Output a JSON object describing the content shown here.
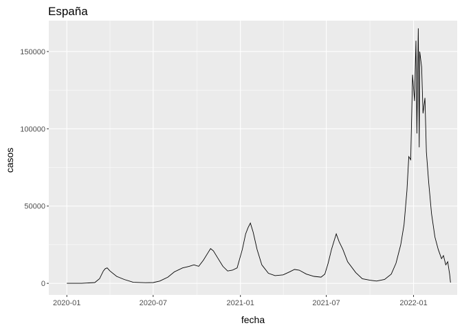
{
  "chart_data": {
    "type": "line",
    "title": "España",
    "xlabel": "fecha",
    "ylabel": "casos",
    "x_ticks": [
      "2020-01",
      "2020-07",
      "2021-01",
      "2021-07",
      "2022-01"
    ],
    "y_ticks": [
      "0",
      "50000",
      "100000",
      "150000"
    ],
    "xlim": [
      "2019-11-24",
      "2022-04-03"
    ],
    "ylim": [
      -7500,
      170000
    ],
    "grid": true,
    "legend": "none",
    "series": [
      {
        "values": [
          [
            "2020-01-01",
            0
          ],
          [
            "2020-02-01",
            0
          ],
          [
            "2020-02-29",
            500
          ],
          [
            "2020-03-10",
            3000
          ],
          [
            "2020-03-18",
            8000
          ],
          [
            "2020-03-22",
            9500
          ],
          [
            "2020-03-26",
            10000
          ],
          [
            "2020-04-01",
            8000
          ],
          [
            "2020-04-15",
            4500
          ],
          [
            "2020-05-01",
            2500
          ],
          [
            "2020-05-20",
            700
          ],
          [
            "2020-06-15",
            400
          ],
          [
            "2020-07-01",
            500
          ],
          [
            "2020-07-15",
            1500
          ],
          [
            "2020-08-01",
            4000
          ],
          [
            "2020-08-15",
            7500
          ],
          [
            "2020-09-01",
            10000
          ],
          [
            "2020-09-15",
            11000
          ],
          [
            "2020-09-25",
            12000
          ],
          [
            "2020-10-05",
            11000
          ],
          [
            "2020-10-15",
            15000
          ],
          [
            "2020-10-25",
            20000
          ],
          [
            "2020-10-30",
            22500
          ],
          [
            "2020-11-05",
            21000
          ],
          [
            "2020-11-15",
            16000
          ],
          [
            "2020-11-25",
            11000
          ],
          [
            "2020-12-05",
            8000
          ],
          [
            "2020-12-15",
            8500
          ],
          [
            "2020-12-25",
            10000
          ],
          [
            "2021-01-05",
            22000
          ],
          [
            "2021-01-12",
            32000
          ],
          [
            "2021-01-17",
            36000
          ],
          [
            "2021-01-22",
            39000
          ],
          [
            "2021-01-28",
            33000
          ],
          [
            "2021-02-05",
            22000
          ],
          [
            "2021-02-15",
            12000
          ],
          [
            "2021-03-01",
            6500
          ],
          [
            "2021-03-15",
            5000
          ],
          [
            "2021-04-01",
            5500
          ],
          [
            "2021-04-15",
            7500
          ],
          [
            "2021-04-25",
            9000
          ],
          [
            "2021-05-05",
            8500
          ],
          [
            "2021-05-20",
            6000
          ],
          [
            "2021-06-05",
            4500
          ],
          [
            "2021-06-20",
            4000
          ],
          [
            "2021-06-28",
            6000
          ],
          [
            "2021-07-05",
            13000
          ],
          [
            "2021-07-12",
            22000
          ],
          [
            "2021-07-18",
            28000
          ],
          [
            "2021-07-22",
            32000
          ],
          [
            "2021-07-28",
            27000
          ],
          [
            "2021-08-05",
            22000
          ],
          [
            "2021-08-15",
            14000
          ],
          [
            "2021-09-01",
            7000
          ],
          [
            "2021-09-15",
            3000
          ],
          [
            "2021-10-01",
            2000
          ],
          [
            "2021-10-15",
            1500
          ],
          [
            "2021-11-01",
            2500
          ],
          [
            "2021-11-15",
            6000
          ],
          [
            "2021-11-25",
            13000
          ],
          [
            "2021-12-05",
            25000
          ],
          [
            "2021-12-12",
            38000
          ],
          [
            "2021-12-18",
            60000
          ],
          [
            "2021-12-22",
            82000
          ],
          [
            "2021-12-26",
            80000
          ],
          [
            "2021-12-30",
            135000
          ],
          [
            "2022-01-03",
            118000
          ],
          [
            "2022-01-06",
            157000
          ],
          [
            "2022-01-08",
            97000
          ],
          [
            "2022-01-11",
            165000
          ],
          [
            "2022-01-13",
            88000
          ],
          [
            "2022-01-14",
            150000
          ],
          [
            "2022-01-18",
            140000
          ],
          [
            "2022-01-21",
            110000
          ],
          [
            "2022-01-25",
            120000
          ],
          [
            "2022-01-28",
            85000
          ],
          [
            "2022-02-02",
            65000
          ],
          [
            "2022-02-08",
            45000
          ],
          [
            "2022-02-15",
            30000
          ],
          [
            "2022-02-22",
            22000
          ],
          [
            "2022-03-01",
            16000
          ],
          [
            "2022-03-05",
            18000
          ],
          [
            "2022-03-10",
            12000
          ],
          [
            "2022-03-14",
            14000
          ],
          [
            "2022-03-18",
            6000
          ],
          [
            "2022-03-20",
            500
          ]
        ]
      }
    ]
  }
}
